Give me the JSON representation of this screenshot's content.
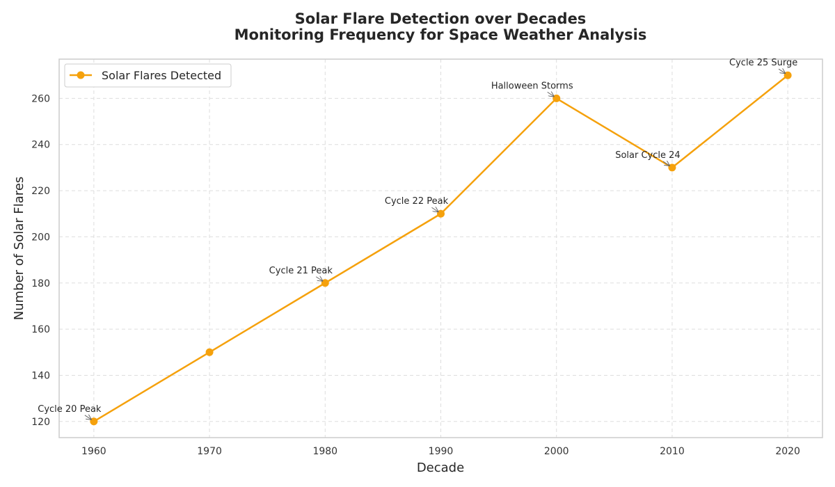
{
  "chart_data": {
    "type": "line",
    "title_line1": "Solar Flare Detection over Decades",
    "title_line2": "Monitoring Frequency for Space Weather Analysis",
    "xlabel": "Decade",
    "ylabel": "Number of Solar Flares",
    "x": [
      1960,
      1970,
      1980,
      1990,
      2000,
      2010,
      2020
    ],
    "xticks": [
      "1960",
      "1970",
      "1980",
      "1990",
      "2000",
      "2010",
      "2020"
    ],
    "yticks": [
      "120",
      "140",
      "160",
      "180",
      "200",
      "220",
      "240",
      "260"
    ],
    "ytick_values": [
      120,
      140,
      160,
      180,
      200,
      220,
      240,
      260
    ],
    "xlim": [
      1957,
      2023
    ],
    "ylim": [
      113,
      277
    ],
    "series": [
      {
        "name": "Solar Flares Detected",
        "values": [
          120,
          150,
          180,
          210,
          260,
          230,
          270
        ],
        "color": "#f5a10c"
      }
    ],
    "annotations": [
      {
        "x": 1960,
        "y": 120,
        "text": "Cycle 20 Peak"
      },
      {
        "x": 1980,
        "y": 180,
        "text": "Cycle 21 Peak"
      },
      {
        "x": 1990,
        "y": 210,
        "text": "Cycle 22 Peak"
      },
      {
        "x": 2000,
        "y": 260,
        "text": "Halloween Storms"
      },
      {
        "x": 2010,
        "y": 230,
        "text": "Solar Cycle 24"
      },
      {
        "x": 2020,
        "y": 270,
        "text": "Cycle 25 Surge"
      }
    ],
    "grid": true,
    "legend_position": "top-left"
  }
}
